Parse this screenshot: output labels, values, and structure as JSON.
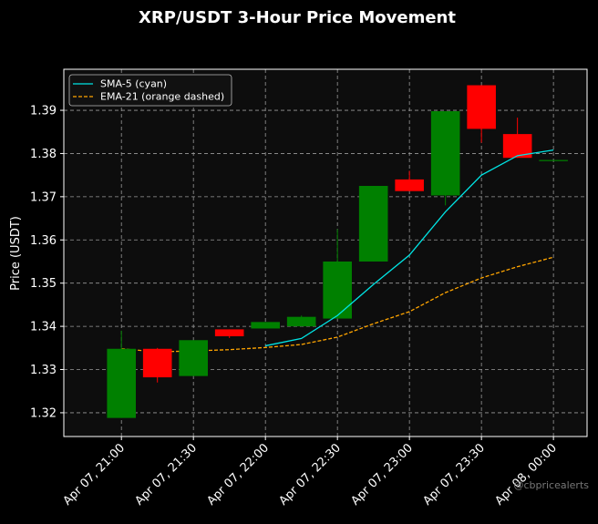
{
  "chart_data": {
    "type": "candlestick",
    "title": "XRP/USDT 3-Hour Price Movement",
    "xlabel": "",
    "ylabel": "Price (USDT)",
    "ylim": [
      1.3145,
      1.3995
    ],
    "yticks": [
      1.32,
      1.33,
      1.34,
      1.35,
      1.36,
      1.37,
      1.38,
      1.39
    ],
    "ytick_labels": [
      "1.32",
      "1.33",
      "1.34",
      "1.35",
      "1.36",
      "1.37",
      "1.38",
      "1.39"
    ],
    "xticks_minutes": [
      0,
      30,
      60,
      90,
      120,
      150,
      180
    ],
    "xtick_labels": [
      "Apr 07, 21:00",
      "Apr 07, 21:30",
      "Apr 07, 22:00",
      "Apr 07, 22:30",
      "Apr 07, 23:00",
      "Apr 07, 23:30",
      "Apr 08, 00:00"
    ],
    "xlim_minutes": [
      -24,
      194
    ],
    "grid": true,
    "legend_position": "top-left",
    "colors": {
      "up": "#008000",
      "down": "#ff0000",
      "sma": "#00e5e5",
      "ema": "#ffa500",
      "grid": "#999999",
      "plot_bg": "#0d0d0d"
    },
    "candles": [
      {
        "time": "Apr 07, 21:00",
        "open": 1.3188,
        "high": 1.339,
        "low": 1.3188,
        "close": 1.3348
      },
      {
        "time": "Apr 07, 21:15",
        "open": 1.3348,
        "high": 1.335,
        "low": 1.327,
        "close": 1.3282
      },
      {
        "time": "Apr 07, 21:30",
        "open": 1.3285,
        "high": 1.3368,
        "low": 1.3285,
        "close": 1.3368
      },
      {
        "time": "Apr 07, 21:45",
        "open": 1.3393,
        "high": 1.3393,
        "low": 1.3373,
        "close": 1.3377
      },
      {
        "time": "Apr 07, 22:00",
        "open": 1.3395,
        "high": 1.341,
        "low": 1.3395,
        "close": 1.341
      },
      {
        "time": "Apr 07, 22:15",
        "open": 1.34,
        "high": 1.3425,
        "low": 1.34,
        "close": 1.3422
      },
      {
        "time": "Apr 07, 22:30",
        "open": 1.3418,
        "high": 1.3625,
        "low": 1.3418,
        "close": 1.355
      },
      {
        "time": "Apr 07, 22:45",
        "open": 1.355,
        "high": 1.3725,
        "low": 1.355,
        "close": 1.3725
      },
      {
        "time": "Apr 07, 23:00",
        "open": 1.374,
        "high": 1.376,
        "low": 1.3713,
        "close": 1.3713
      },
      {
        "time": "Apr 07, 23:15",
        "open": 1.3703,
        "high": 1.3898,
        "low": 1.368,
        "close": 1.3898
      },
      {
        "time": "Apr 07, 23:30",
        "open": 1.3958,
        "high": 1.3958,
        "low": 1.3825,
        "close": 1.3857
      },
      {
        "time": "Apr 07, 23:45",
        "open": 1.3845,
        "high": 1.3883,
        "low": 1.379,
        "close": 1.379
      },
      {
        "time": "Apr 08, 00:00",
        "open": 1.3785,
        "high": 1.3785,
        "low": 1.3785,
        "close": 1.3785
      }
    ],
    "series": [
      {
        "name": "SMA-5 (cyan)",
        "style": "solid",
        "color": "#00e5e5",
        "x_minutes": [
          60,
          75,
          90,
          105,
          120,
          135,
          150,
          165,
          180
        ],
        "values": [
          1.3355,
          1.3372,
          1.3425,
          1.3497,
          1.3565,
          1.3665,
          1.375,
          1.3795,
          1.3808
        ]
      },
      {
        "name": "EMA-21 (orange dashed)",
        "style": "dashed",
        "color": "#ffa500",
        "x_minutes": [
          0,
          15,
          30,
          45,
          60,
          75,
          90,
          105,
          120,
          135,
          150,
          165,
          180
        ],
        "values": [
          1.3348,
          1.3341,
          1.3343,
          1.3346,
          1.3351,
          1.3358,
          1.3375,
          1.3406,
          1.3434,
          1.3478,
          1.3512,
          1.3538,
          1.356
        ]
      }
    ]
  },
  "watermark": "@cbpricealerts"
}
